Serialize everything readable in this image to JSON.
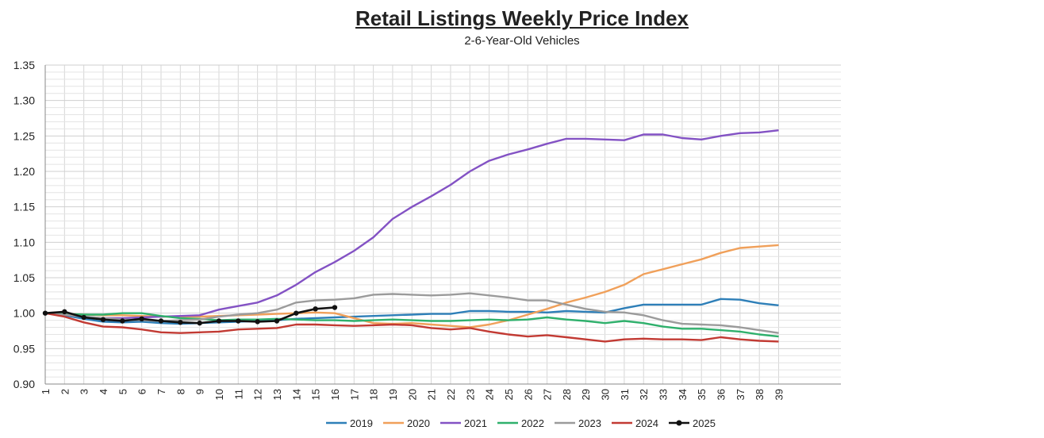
{
  "chart_data": {
    "type": "line",
    "title": "Retail Listings Weekly Price Index",
    "subtitle": "2-6-Year-Old Vehicles",
    "xlabel": "",
    "ylabel": "",
    "ylim": [
      0.9,
      1.35
    ],
    "y_ticks": [
      "0.90",
      "0.95",
      "1.00",
      "1.05",
      "1.10",
      "1.15",
      "1.20",
      "1.25",
      "1.30",
      "1.35"
    ],
    "x_ticks": [
      "1",
      "2",
      "3",
      "4",
      "5",
      "6",
      "7",
      "8",
      "9",
      "10",
      "11",
      "12",
      "13",
      "14",
      "15",
      "16",
      "17",
      "18",
      "19",
      "20",
      "21",
      "22",
      "23",
      "24",
      "25",
      "26",
      "27",
      "28",
      "29",
      "30",
      "31",
      "32",
      "33",
      "34",
      "35",
      "36",
      "37",
      "38",
      "39"
    ],
    "grid": true,
    "legend_position": "bottom",
    "series": [
      {
        "name": "2019",
        "color": "#2e7fb8",
        "markers": false,
        "values": [
          1.0,
          0.997,
          0.992,
          0.988,
          0.987,
          0.988,
          0.986,
          0.985,
          0.986,
          0.987,
          0.988,
          0.989,
          0.99,
          0.992,
          0.993,
          0.994,
          0.995,
          0.996,
          0.997,
          0.998,
          0.999,
          0.999,
          1.003,
          1.003,
          1.002,
          1.002,
          1.001,
          1.003,
          1.002,
          1.001,
          1.007,
          1.012,
          1.012,
          1.012,
          1.012,
          1.02,
          1.019,
          1.014,
          1.011
        ]
      },
      {
        "name": "2020",
        "color": "#f0a05a",
        "markers": false,
        "values": [
          1.0,
          0.999,
          0.998,
          0.997,
          0.997,
          0.996,
          0.995,
          0.995,
          0.995,
          0.996,
          0.997,
          0.998,
          0.999,
          1.0,
          1.001,
          1.0,
          0.993,
          0.986,
          0.985,
          0.986,
          0.984,
          0.982,
          0.98,
          0.984,
          0.99,
          0.998,
          1.006,
          1.015,
          1.022,
          1.03,
          1.04,
          1.055,
          1.062,
          1.069,
          1.076,
          1.085,
          1.092,
          1.094,
          1.096
        ]
      },
      {
        "name": "2021",
        "color": "#8352c4",
        "markers": false,
        "values": [
          1.0,
          0.998,
          0.995,
          0.993,
          0.993,
          0.994,
          0.995,
          0.996,
          0.997,
          1.005,
          1.01,
          1.015,
          1.025,
          1.04,
          1.058,
          1.072,
          1.088,
          1.107,
          1.133,
          1.15,
          1.165,
          1.181,
          1.2,
          1.215,
          1.224,
          1.231,
          1.239,
          1.246,
          1.246,
          1.245,
          1.244,
          1.252,
          1.252,
          1.247,
          1.245,
          1.25,
          1.254,
          1.255,
          1.258
        ]
      },
      {
        "name": "2022",
        "color": "#2fb06c",
        "markers": false,
        "values": [
          1.0,
          0.999,
          0.998,
          0.998,
          1.0,
          1.0,
          0.996,
          0.993,
          0.992,
          0.99,
          0.991,
          0.991,
          0.992,
          0.991,
          0.99,
          0.99,
          0.989,
          0.99,
          0.991,
          0.99,
          0.989,
          0.989,
          0.99,
          0.991,
          0.99,
          0.991,
          0.994,
          0.991,
          0.989,
          0.986,
          0.989,
          0.986,
          0.981,
          0.978,
          0.978,
          0.976,
          0.974,
          0.97,
          0.967
        ]
      },
      {
        "name": "2023",
        "color": "#9b9b9b",
        "markers": false,
        "values": [
          1.0,
          0.998,
          0.995,
          0.993,
          0.991,
          0.99,
          0.989,
          0.99,
          0.991,
          0.995,
          0.998,
          1.0,
          1.005,
          1.015,
          1.018,
          1.019,
          1.021,
          1.026,
          1.027,
          1.026,
          1.025,
          1.026,
          1.028,
          1.025,
          1.022,
          1.018,
          1.018,
          1.012,
          1.006,
          1.002,
          1.001,
          0.997,
          0.99,
          0.985,
          0.984,
          0.983,
          0.98,
          0.976,
          0.972
        ]
      },
      {
        "name": "2024",
        "color": "#c23a33",
        "markers": false,
        "values": [
          1.0,
          0.995,
          0.987,
          0.981,
          0.98,
          0.977,
          0.973,
          0.972,
          0.973,
          0.974,
          0.977,
          0.978,
          0.979,
          0.984,
          0.984,
          0.983,
          0.982,
          0.983,
          0.984,
          0.983,
          0.979,
          0.977,
          0.979,
          0.974,
          0.97,
          0.967,
          0.969,
          0.966,
          0.963,
          0.96,
          0.963,
          0.964,
          0.963,
          0.963,
          0.962,
          0.966,
          0.963,
          0.961,
          0.96
        ]
      },
      {
        "name": "2025",
        "color": "#111111",
        "markers": true,
        "values": [
          1.0,
          1.002,
          0.994,
          0.991,
          0.989,
          0.992,
          0.989,
          0.987,
          0.986,
          0.989,
          0.989,
          0.988,
          0.989,
          1.0,
          1.006,
          1.008
        ]
      }
    ]
  }
}
